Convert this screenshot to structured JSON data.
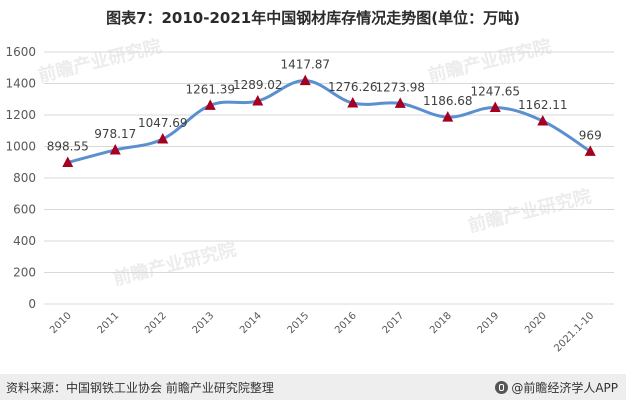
{
  "title": "图表7：2010-2021年中国钢材库存情况走势图(单位：万吨)",
  "source": "资料来源：中国钢铁工业协会 前瞻产业研究院整理",
  "brand": "@前瞻经济学人APP",
  "watermark": "前瞻产业研究院",
  "colors": {
    "line": "#5a8fd0",
    "marker": "#a50021",
    "grid": "#d9d9d9",
    "axis_text": "#595959"
  },
  "chart_data": {
    "type": "line",
    "categories": [
      "2010",
      "2011",
      "2012",
      "2013",
      "2014",
      "2015",
      "2016",
      "2017",
      "2018",
      "2019",
      "2020",
      "2021.1-10"
    ],
    "series": [
      {
        "values": [
          898.55,
          978.17,
          1047.69,
          1261.39,
          1289.02,
          1417.87,
          1276.26,
          1273.98,
          1186.68,
          1247.65,
          1162.11,
          969
        ]
      }
    ],
    "data_labels": [
      "898.55",
      "978.17",
      "1047.69",
      "1261.39",
      "1289.02",
      "1417.87",
      "1276.26",
      "1273.98",
      "1186.68",
      "1247.65",
      "1162.11",
      "969"
    ],
    "ylim": [
      0,
      1600
    ],
    "yticks": [
      0,
      200,
      400,
      600,
      800,
      1000,
      1200,
      1400,
      1600
    ],
    "grid": true,
    "smooth": true,
    "marker": "triangle"
  }
}
